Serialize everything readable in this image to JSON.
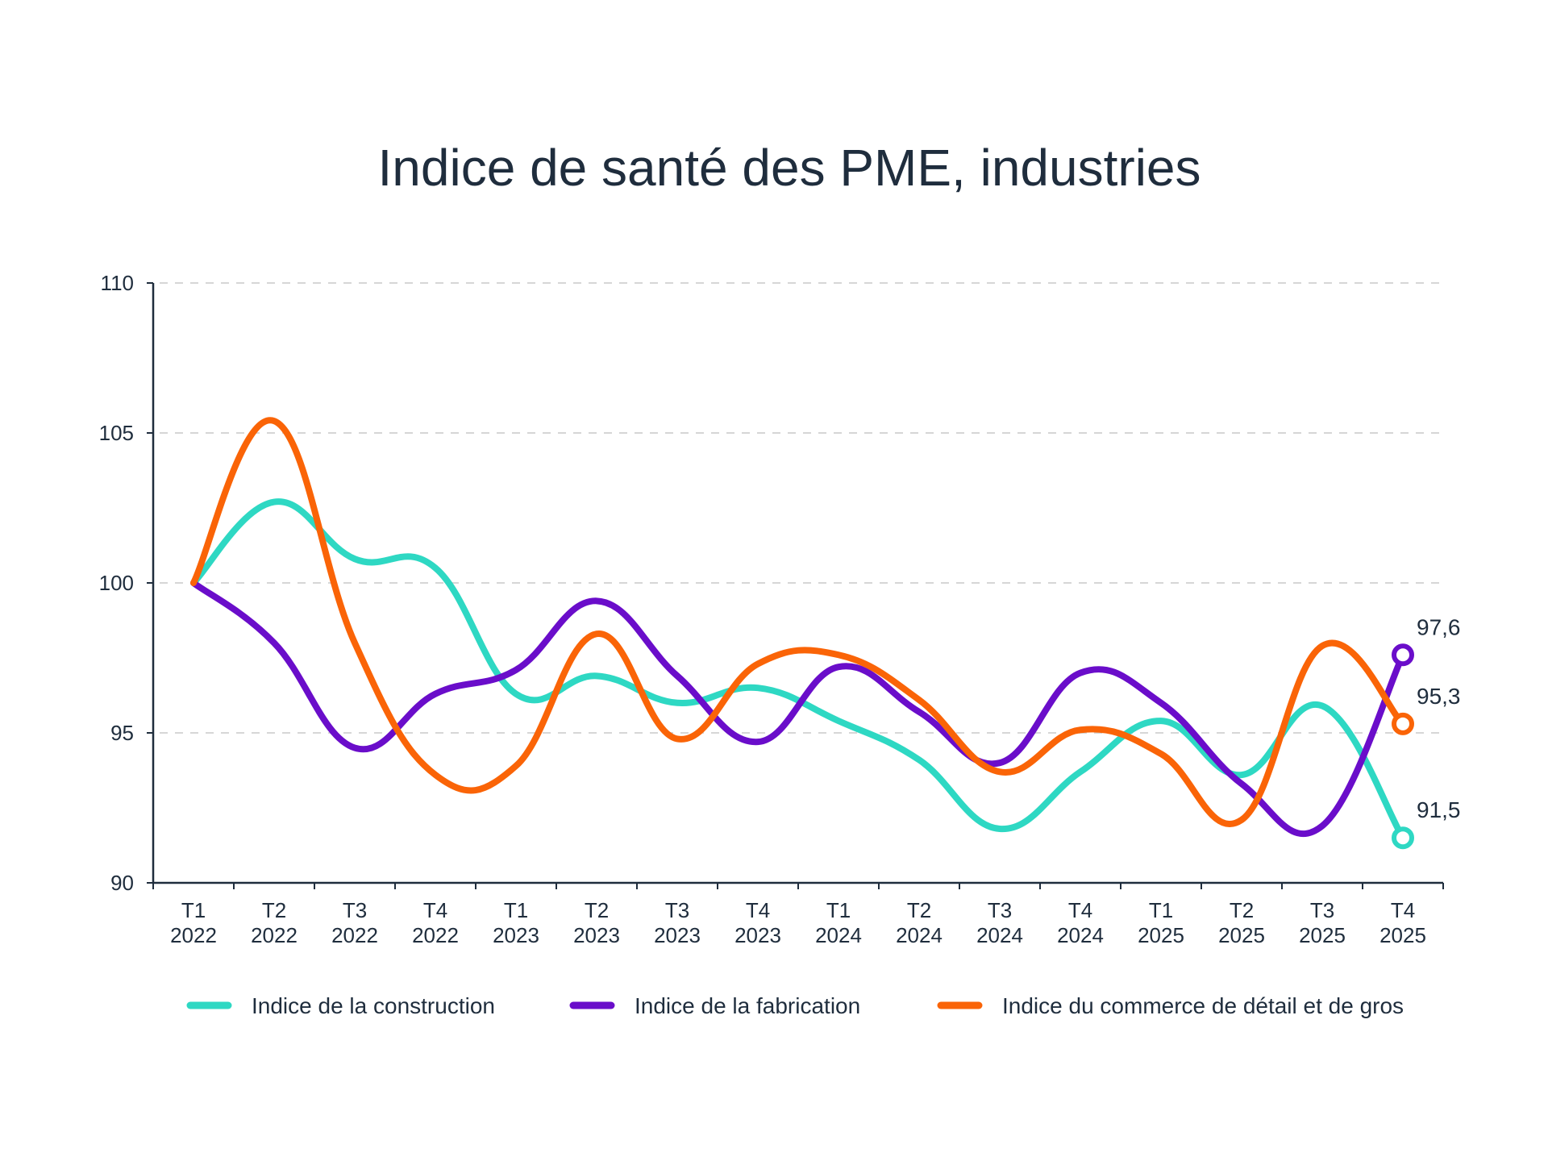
{
  "chart_data": {
    "type": "line",
    "title": "Indice de santé des PME, industries",
    "xlabel": "",
    "ylabel": "",
    "categories": [
      [
        "T1",
        "2022"
      ],
      [
        "T2",
        "2022"
      ],
      [
        "T3",
        "2022"
      ],
      [
        "T4",
        "2022"
      ],
      [
        "T1",
        "2023"
      ],
      [
        "T2",
        "2023"
      ],
      [
        "T3",
        "2023"
      ],
      [
        "T4",
        "2023"
      ],
      [
        "T1",
        "2024"
      ],
      [
        "T2",
        "2024"
      ],
      [
        "T3",
        "2024"
      ],
      [
        "T4",
        "2024"
      ],
      [
        "T1",
        "2025"
      ],
      [
        "T2",
        "2025"
      ],
      [
        "T3",
        "2025"
      ],
      [
        "T4",
        "2025"
      ]
    ],
    "ylim": [
      90,
      110
    ],
    "yticks": [
      90,
      95,
      100,
      105,
      110
    ],
    "grid": "horizontal dashed",
    "legend_position": "bottom",
    "series": [
      {
        "name": "Indice de la construction",
        "color": "#2ed8c3",
        "values": [
          100,
          102.7,
          100.8,
          100.5,
          96.3,
          96.9,
          96.0,
          96.5,
          95.4,
          94.1,
          91.8,
          93.7,
          95.4,
          93.6,
          95.9,
          91.5
        ],
        "end_label": "91,5"
      },
      {
        "name": "Indice de la fabrication",
        "color": "#6a0dca",
        "values": [
          100,
          98.0,
          94.5,
          96.3,
          97.1,
          99.4,
          96.9,
          94.7,
          97.2,
          95.7,
          94.0,
          97.0,
          96.0,
          93.3,
          91.9,
          97.6
        ],
        "end_label": "97,6"
      },
      {
        "name": "Indice du commerce de détail et de gros",
        "color": "#fa6407",
        "values": [
          100,
          105.4,
          98.0,
          93.6,
          93.9,
          98.3,
          94.8,
          97.3,
          97.6,
          96.1,
          93.7,
          95.1,
          94.3,
          92.1,
          97.9,
          95.3
        ],
        "end_label": "95,3"
      }
    ]
  },
  "colors": {
    "text": "#1f2d3d",
    "axis": "#1f2d3d",
    "grid": "#d6d6d6"
  }
}
